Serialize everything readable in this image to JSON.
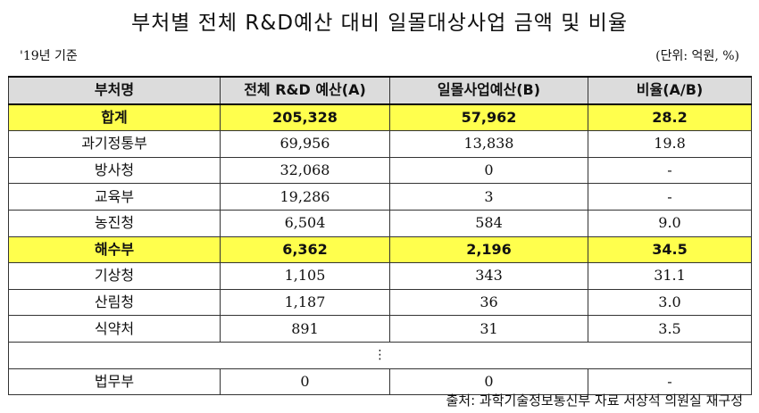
{
  "title": "부처별 전체 R&D예산 대비 일몰대상사업 금액 및 비율",
  "basis": "'19년 기준",
  "unit": "(단위: 억원, %)",
  "table": {
    "headers": [
      "부처명",
      "전체 R&D 예산(A)",
      "일몰사업예산(B)",
      "비율(A/B)"
    ],
    "rows": [
      {
        "name": "합계",
        "total": "205,328",
        "sunset": "57,962",
        "ratio": "28.2"
      },
      {
        "name": "과기정통부",
        "total": "69,956",
        "sunset": "13,838",
        "ratio": "19.8"
      },
      {
        "name": "방사청",
        "total": "32,068",
        "sunset": "0",
        "ratio": "-"
      },
      {
        "name": "교육부",
        "total": "19,286",
        "sunset": "3",
        "ratio": "-"
      },
      {
        "name": "농진청",
        "total": "6,504",
        "sunset": "584",
        "ratio": "9.0"
      },
      {
        "name": "해수부",
        "total": "6,362",
        "sunset": "2,196",
        "ratio": "34.5"
      },
      {
        "name": "기상청",
        "total": "1,105",
        "sunset": "343",
        "ratio": "31.1"
      },
      {
        "name": "산림청",
        "total": "1,187",
        "sunset": "36",
        "ratio": "3.0"
      },
      {
        "name": "식약처",
        "total": "891",
        "sunset": "31",
        "ratio": "3.5"
      },
      {
        "name": "법무부",
        "total": "0",
        "sunset": "0",
        "ratio": "-"
      }
    ],
    "ellipsis": "⋮"
  },
  "source": "출처: 과학기술정보통신부 자료 서상석 의원실 재구성"
}
